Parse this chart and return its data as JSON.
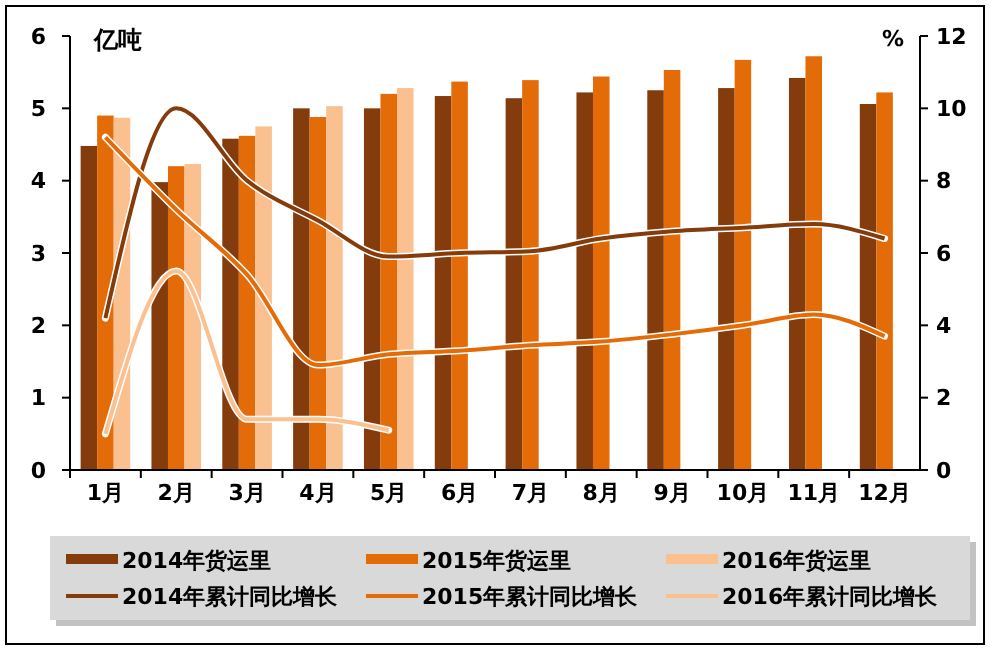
{
  "chart_data": {
    "type": "bar",
    "ylabel": "亿吨",
    "y2label": "%",
    "categories": [
      "1月",
      "2月",
      "3月",
      "4月",
      "5月",
      "6月",
      "7月",
      "8月",
      "9月",
      "10月",
      "11月",
      "12月"
    ],
    "ylim": [
      0,
      6
    ],
    "yticks": [
      0,
      1,
      2,
      3,
      4,
      5,
      6
    ],
    "y2lim": [
      0,
      12
    ],
    "y2ticks": [
      0,
      2,
      4,
      6,
      8,
      10,
      12
    ],
    "legend": "bottom",
    "grid": false,
    "series": [
      {
        "name": "2014年货运里",
        "color": "#843c0c",
        "values": [
          4.48,
          3.98,
          4.58,
          5.0,
          5.0,
          5.17,
          5.14,
          5.22,
          5.25,
          5.28,
          5.42,
          5.06
        ]
      },
      {
        "name": "2015年货运里",
        "color": "#e36c09",
        "values": [
          4.9,
          4.2,
          4.62,
          4.88,
          5.2,
          5.37,
          5.39,
          5.44,
          5.53,
          5.67,
          5.72,
          5.22
        ]
      },
      {
        "name": "2016年货运里",
        "color": "#fac090",
        "values": [
          4.87,
          4.23,
          4.75,
          5.03,
          5.28,
          null,
          null,
          null,
          null,
          null,
          null,
          null
        ]
      },
      {
        "name": "2014年累计同比增长",
        "type": "line",
        "axis": "y2",
        "color": "#843c0c",
        "values": [
          4.2,
          10.0,
          8.0,
          6.9,
          5.9,
          6.0,
          6.05,
          6.4,
          6.6,
          6.7,
          6.8,
          6.4
        ]
      },
      {
        "name": "2015年累计同比增长",
        "type": "line",
        "axis": "y2",
        "color": "#e36c09",
        "values": [
          9.2,
          7.2,
          5.4,
          2.9,
          3.2,
          3.3,
          3.45,
          3.55,
          3.75,
          4.0,
          4.3,
          3.7
        ]
      },
      {
        "name": "2016年累计同比增长",
        "type": "line",
        "axis": "y2",
        "color": "#fac090",
        "values": [
          1.0,
          5.5,
          1.4,
          1.4,
          1.1,
          null,
          null,
          null,
          null,
          null,
          null,
          null
        ]
      }
    ]
  }
}
